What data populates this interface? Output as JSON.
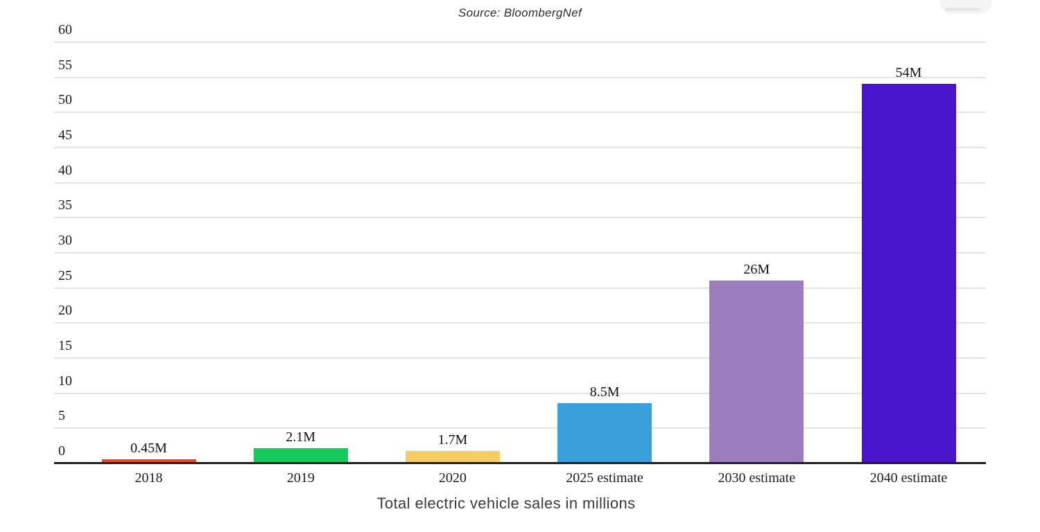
{
  "source_label": "Source: BloombergNef",
  "chart_data": {
    "type": "bar",
    "title": "Total electric vehicle sales in millions",
    "subtitle": "Source: BloombergNef",
    "categories": [
      "2018",
      "2019",
      "2020",
      "2025 estimate",
      "2030 estimate",
      "2040 estimate"
    ],
    "values": [
      0.45,
      2.1,
      1.7,
      8.5,
      26,
      54
    ],
    "value_labels": [
      "0.45M",
      "2.1M",
      "1.7M",
      "8.5M",
      "26M",
      "54M"
    ],
    "bar_colors": [
      "#e8491d",
      "#17c95c",
      "#f6cd61",
      "#3aa0db",
      "#9c7dbe",
      "#4a14cd"
    ],
    "xlabel": "",
    "ylabel": "",
    "ylim": [
      0,
      60
    ],
    "yticks": [
      60,
      55,
      50,
      45,
      40,
      35,
      30,
      25,
      20,
      15,
      10,
      5,
      0
    ],
    "grid": "horizontal",
    "legend": "none",
    "gridline_color": "#e3e3e3",
    "axis_color": "#251f1b",
    "label_color": "#1a1a1a"
  }
}
